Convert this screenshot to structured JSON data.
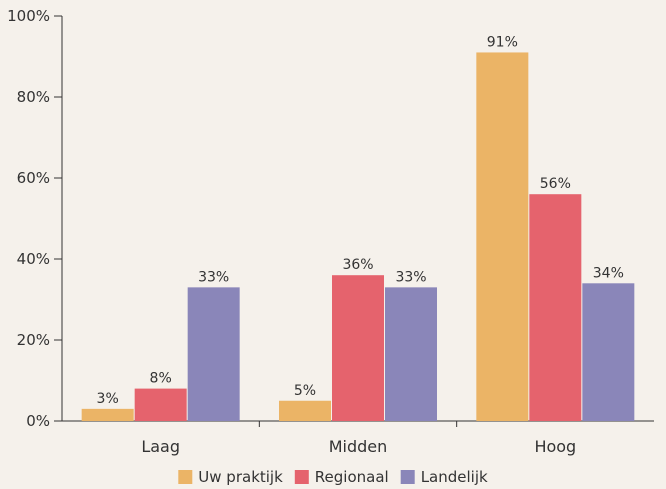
{
  "chart_data": {
    "type": "bar",
    "categories": [
      "Laag",
      "Midden",
      "Hoog"
    ],
    "series": [
      {
        "name": "Uw praktijk",
        "color": "#ebb466",
        "values": [
          3,
          5,
          91
        ],
        "labels": [
          "3%",
          "5%",
          "91%"
        ]
      },
      {
        "name": "Regionaal",
        "color": "#e5636d",
        "values": [
          8,
          36,
          56
        ],
        "labels": [
          "8%",
          "36%",
          "56%"
        ]
      },
      {
        "name": "Landelijk",
        "color": "#8a86b9",
        "values": [
          33,
          33,
          34
        ],
        "labels": [
          "33%",
          "33%",
          "34%"
        ]
      }
    ],
    "ylim": [
      0,
      100
    ],
    "yticks": [
      0,
      20,
      40,
      60,
      80,
      100
    ],
    "ytick_labels": [
      "0%",
      "20%",
      "40%",
      "60%",
      "80%",
      "100%"
    ],
    "legend_position": "bottom",
    "grid": false,
    "title": "",
    "xlabel": "",
    "ylabel": ""
  }
}
